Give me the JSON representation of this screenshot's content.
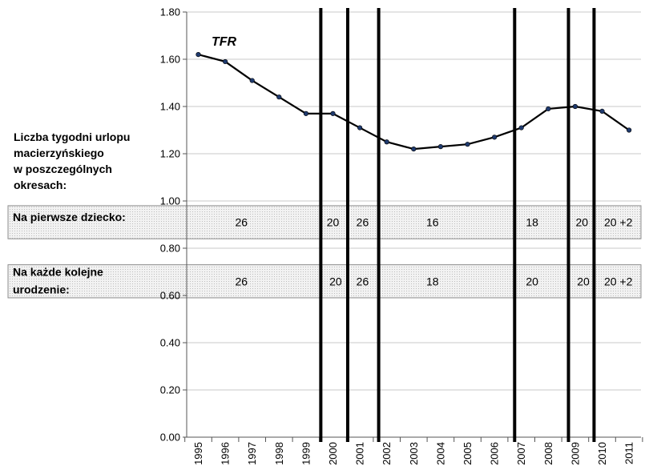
{
  "chart_data": {
    "type": "line",
    "title": "",
    "xlabel": "",
    "ylabel": "",
    "ylim": [
      0,
      1.8
    ],
    "yticks": [
      "0.00",
      "0.20",
      "0.40",
      "0.60",
      "0.80",
      "1.00",
      "1.20",
      "1.40",
      "1.60",
      "1.80"
    ],
    "categories": [
      "1995",
      "1996",
      "1997",
      "1998",
      "1999",
      "2000",
      "2001",
      "2002",
      "2003",
      "2004",
      "2005",
      "2006",
      "2007",
      "2008",
      "2009",
      "2010",
      "2011"
    ],
    "grid": true,
    "series": [
      {
        "name": "TFR",
        "color": "#000000",
        "values": [
          1.62,
          1.59,
          1.51,
          1.44,
          1.37,
          1.37,
          1.31,
          1.25,
          1.22,
          1.23,
          1.24,
          1.27,
          1.31,
          1.39,
          1.4,
          1.38,
          1.3
        ]
      }
    ],
    "period_separators": [
      1999.55,
      2000.55,
      2001.7,
      2006.75,
      2008.75,
      2009.7
    ],
    "side_title": [
      "Liczba tygodni urlopu",
      "macierzyńskiego",
      "w poszczególnych",
      "okresach:"
    ],
    "bands": [
      {
        "label": [
          "Na pierwsze dziecko:"
        ],
        "y_range": [
          0.84,
          0.98
        ],
        "cells": [
          {
            "text": "26",
            "x": 1996.6
          },
          {
            "text": "20",
            "x": 2000.0
          },
          {
            "text": "26",
            "x": 2001.1
          },
          {
            "text": "16",
            "x": 2003.7
          },
          {
            "text": "18",
            "x": 2007.4
          },
          {
            "text": "20",
            "x": 2009.25
          },
          {
            "text": "20 +2",
            "x": 2010.6
          }
        ]
      },
      {
        "label": [
          "Na każde kolejne",
          " urodzenie:"
        ],
        "y_range": [
          0.59,
          0.73
        ],
        "cells": [
          {
            "text": "26",
            "x": 1996.6
          },
          {
            "text": "20",
            "x": 2000.1
          },
          {
            "text": "26",
            "x": 2001.1
          },
          {
            "text": "18",
            "x": 2003.7
          },
          {
            "text": "20",
            "x": 2007.4
          },
          {
            "text": "20",
            "x": 2009.3
          },
          {
            "text": "20 +2",
            "x": 2010.6
          }
        ]
      }
    ]
  }
}
